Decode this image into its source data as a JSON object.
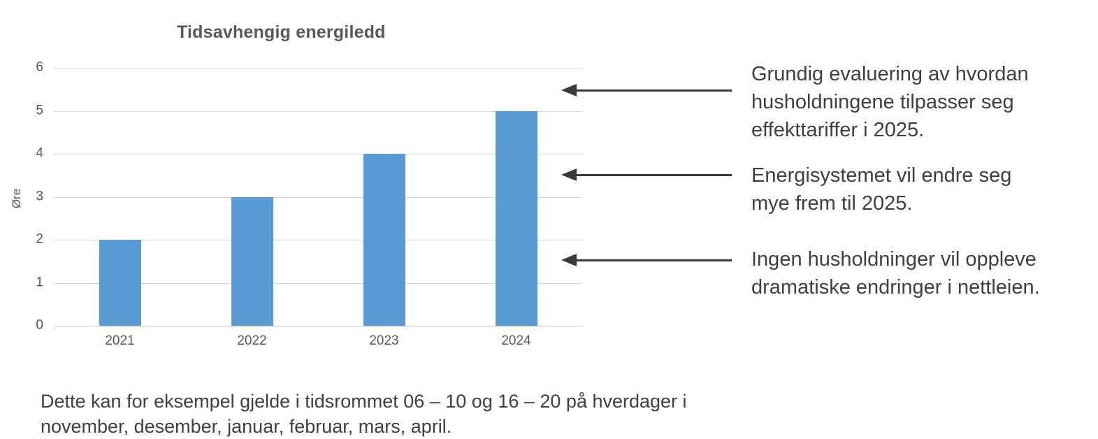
{
  "chart_data": {
    "type": "bar",
    "title": "Tidsavhengig energiledd",
    "ylabel": "Øre",
    "xlabel": "",
    "categories": [
      "2021",
      "2022",
      "2023",
      "2024"
    ],
    "values": [
      2,
      3,
      4,
      5
    ],
    "ylim": [
      0,
      6
    ],
    "yticks": [
      0,
      1,
      2,
      3,
      4,
      5,
      6
    ],
    "grid": true,
    "legend_position": "none",
    "bar_color": "#5b9bd5"
  },
  "annotations": [
    {
      "lines": [
        "Grundig evaluering av hvordan",
        "husholdningene tilpasser seg",
        "effekttariffer i 2025."
      ]
    },
    {
      "lines": [
        "Energisystemet vil endre seg",
        "mye frem til 2025."
      ]
    },
    {
      "lines": [
        "Ingen husholdninger vil oppleve",
        "dramatiske endringer i nettleien."
      ]
    }
  ],
  "footnote": {
    "lines": [
      "Dette kan for eksempel gjelde i tidsrommet 06 – 10 og 16 – 20 på hverdager i",
      "november, desember, januar, februar, mars, april."
    ]
  },
  "colors": {
    "bar": "#5b9bd5",
    "gridline": "#d8d8d8",
    "axis_line": "#c2c2c2",
    "axis_text": "#595959",
    "title_text": "#595959",
    "body_text": "#404040",
    "arrow": "#3a3a3a",
    "background": "#ffffff"
  }
}
